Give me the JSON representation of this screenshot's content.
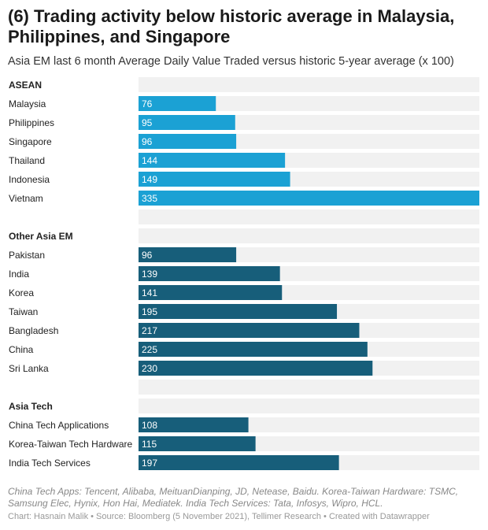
{
  "header": {
    "title": "(6) Trading activity below historic average in Malaysia, Philippines, and Singapore",
    "subtitle": "Asia EM last 6 month Average Daily Value Traded versus historic 5-year average (x 100)"
  },
  "notes": "China Tech Apps: Tencent, Alibaba, MeituanDianping, JD, Netease, Baidu. Korea-Taiwan Hardware: TSMC, Samsung Elec, Hynix, Hon Hai, Mediatek. India Tech Services: Tata, Infosys, Wipro, HCL.",
  "footer": "Chart: Hasnain Malik • Source: Bloomberg (5 November 2021), Tellimer Research • Created with Datawrapper",
  "chart_data": {
    "type": "bar",
    "orientation": "horizontal",
    "xlim": [
      0,
      335
    ],
    "colors": {
      "ASEAN": "#1ba1d4",
      "Other Asia EM": "#175e7a",
      "Asia Tech": "#175e7a",
      "track": "#f1f1f1"
    },
    "groups": [
      {
        "name": "ASEAN",
        "categories": [
          "Malaysia",
          "Philippines",
          "Singapore",
          "Thailand",
          "Indonesia",
          "Vietnam"
        ],
        "values": [
          76,
          95,
          96,
          144,
          149,
          335
        ]
      },
      {
        "name": "Other Asia EM",
        "categories": [
          "Pakistan",
          "India",
          "Korea",
          "Taiwan",
          "Bangladesh",
          "China",
          "Sri Lanka"
        ],
        "values": [
          96,
          139,
          141,
          195,
          217,
          225,
          230
        ]
      },
      {
        "name": "Asia Tech",
        "categories": [
          "China Tech Applications",
          "Korea-Taiwan Tech Hardware",
          "India Tech Services"
        ],
        "values": [
          108,
          115,
          197
        ]
      }
    ]
  }
}
